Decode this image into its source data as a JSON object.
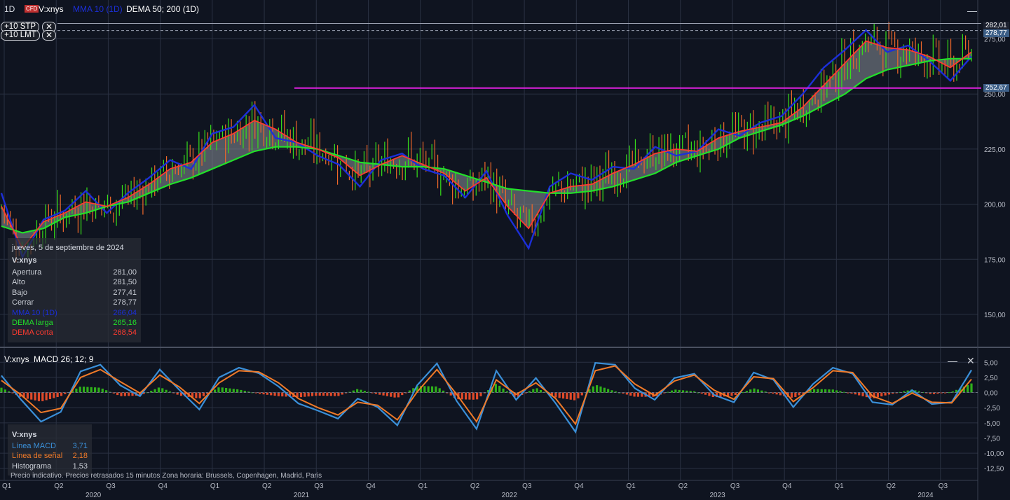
{
  "header": {
    "interval": "1D",
    "cfd_badge": "CFD",
    "symbol": "V:xnys",
    "indicator_faint": "MMA 10 (1D)",
    "indicator": "DEMA 50; 200 (1D)"
  },
  "orders": [
    {
      "label": "+10 STP",
      "close": "✕"
    },
    {
      "label": "+10 LMT",
      "close": "✕"
    }
  ],
  "price_axis": {
    "ticks": [
      "275,00",
      "250,00",
      "225,00",
      "200,00",
      "175,00",
      "150,00"
    ],
    "tags": {
      "stop": "282,01",
      "limit": "278,77",
      "level": "252,67"
    }
  },
  "main_legend": {
    "date": "jueves, 5 de septiembre de 2024",
    "symbol": "V:xnys",
    "rows": [
      {
        "label": "Apertura",
        "value": "281,00",
        "color": "#c8ccd4"
      },
      {
        "label": "Alto",
        "value": "281,50",
        "color": "#c8ccd4"
      },
      {
        "label": "Bajo",
        "value": "277,41",
        "color": "#c8ccd4"
      },
      {
        "label": "Cerrar",
        "value": "278,77",
        "color": "#c8ccd4"
      },
      {
        "label": "MMA 10 (1D)",
        "value": "266,04",
        "color": "#1c2fd8"
      },
      {
        "label": "DEMA larga",
        "value": "265,16",
        "color": "#22e02a"
      },
      {
        "label": "DEMA corta",
        "value": "268,54",
        "color": "#ff3b30"
      }
    ]
  },
  "macd_header": {
    "symbol": "V:xnys",
    "title": "MACD 26; 12; 9"
  },
  "macd_axis": {
    "ticks": [
      "5,00",
      "2,50",
      "0,00",
      "-2,50",
      "-5,00",
      "-7,50",
      "-10,00",
      "-12,50"
    ]
  },
  "macd_legend": {
    "symbol": "V:xnys",
    "rows": [
      {
        "label": "Línea MACD",
        "value": "3,71",
        "color": "#3a8fd8"
      },
      {
        "label": "Línea de señal",
        "value": "2,18",
        "color": "#f07a28"
      },
      {
        "label": "Histograma",
        "value": "1,53",
        "color": "#c8ccd4"
      }
    ]
  },
  "footer": {
    "note": "Precio indicativo. Precios retrasados 15 minutos    Zona horaria: Brussels, Copenhagen, Madrid, Paris"
  },
  "time_axis": {
    "quarters": [
      "Q1",
      "Q2",
      "Q3",
      "Q4",
      "Q1",
      "Q2",
      "Q3",
      "Q4",
      "Q1",
      "Q2",
      "Q3",
      "Q4",
      "Q1",
      "Q2",
      "Q3",
      "Q4",
      "Q1",
      "Q2",
      "Q3"
    ],
    "years": [
      "2020",
      "2021",
      "2022",
      "2023",
      "2024"
    ]
  },
  "colors": {
    "background": "#0f1420",
    "grid": "#2a3142",
    "candle_up": "#37e01a",
    "candle_down": "#f0682a",
    "mma10": "#1c2fd8",
    "dema_long": "#22e02a",
    "dema_short": "#ff3b30",
    "fill": "#8a8f99",
    "level_line": "#e020e0",
    "macd_line": "#3a8fd8",
    "signal_line": "#f07a28",
    "hist_up": "#2fb01a",
    "hist_down": "#e04a2a"
  },
  "chart_data": {
    "type": "line",
    "title": "V:xnys",
    "price_range": [
      136,
      292
    ],
    "horizontal_level": 252.67,
    "order_stop": 282.01,
    "order_limit": 278.77,
    "series": [
      {
        "name": "DEMA larga",
        "values": [
          190,
          187,
          189,
          194,
          196,
          199,
          201,
          205,
          209,
          212,
          216,
          220,
          224,
          226,
          226,
          225,
          222,
          219,
          218,
          217,
          217,
          216,
          213,
          210,
          207,
          206,
          205,
          205,
          206,
          208,
          211,
          214,
          219,
          222,
          225,
          230,
          233,
          236,
          240,
          245,
          250,
          257,
          261,
          263,
          265,
          266,
          266
        ]
      },
      {
        "name": "DEMA corta",
        "values": [
          199,
          180,
          192,
          196,
          201,
          199,
          203,
          209,
          216,
          219,
          228,
          232,
          238,
          234,
          228,
          225,
          221,
          213,
          218,
          222,
          218,
          214,
          206,
          212,
          199,
          189,
          205,
          208,
          209,
          214,
          218,
          223,
          225,
          224,
          230,
          233,
          235,
          237,
          244,
          254,
          264,
          274,
          271,
          270,
          267,
          262,
          269
        ]
      },
      {
        "name": "MMA 10 (1D)",
        "values": [
          205,
          176,
          193,
          197,
          206,
          196,
          205,
          212,
          220,
          216,
          232,
          235,
          245,
          230,
          228,
          222,
          218,
          208,
          220,
          223,
          216,
          213,
          203,
          215,
          195,
          180,
          208,
          214,
          211,
          217,
          216,
          226,
          222,
          224,
          234,
          231,
          237,
          240,
          250,
          262,
          270,
          279,
          269,
          272,
          265,
          256,
          267
        ]
      }
    ],
    "macd": {
      "range": [
        -14.5,
        7
      ],
      "macd_line": [
        2.8,
        -1.2,
        -4.8,
        -3.2,
        3.5,
        4.6,
        1.2,
        -0.6,
        3.8,
        0.4,
        -2.8,
        2.5,
        4.1,
        3.2,
        1.0,
        -1.8,
        -3.0,
        -4.3,
        -1.0,
        -2.4,
        -5.4,
        1.2,
        4.8,
        -1.4,
        -6.0,
        3.6,
        -1.2,
        2.4,
        -1.8,
        -6.5,
        4.9,
        4.6,
        0.7,
        -1.2,
        2.4,
        3.1,
        -0.4,
        -1.6,
        3.3,
        2.1,
        -2.4,
        1.4,
        4.1,
        3.1,
        -1.6,
        -2.0,
        0.4,
        -1.9,
        -1.6,
        3.7
      ],
      "signal_line": [
        2.0,
        -0.4,
        -3.3,
        -2.6,
        2.5,
        3.8,
        1.8,
        -0.1,
        2.9,
        0.9,
        -1.8,
        1.6,
        3.6,
        3.4,
        1.6,
        -1.0,
        -2.5,
        -3.7,
        -1.6,
        -2.1,
        -4.5,
        0.1,
        3.8,
        -0.3,
        -4.8,
        2.1,
        -0.3,
        1.6,
        -1.0,
        -5.2,
        3.6,
        4.4,
        1.4,
        -0.5,
        1.9,
        2.9,
        0.4,
        -1.1,
        2.6,
        2.3,
        -1.5,
        0.8,
        3.6,
        3.3,
        -0.6,
        -1.8,
        -0.1,
        -1.6,
        -1.7,
        2.2
      ]
    },
    "years": [
      "2020",
      "2021",
      "2022",
      "2023",
      "2024"
    ]
  }
}
